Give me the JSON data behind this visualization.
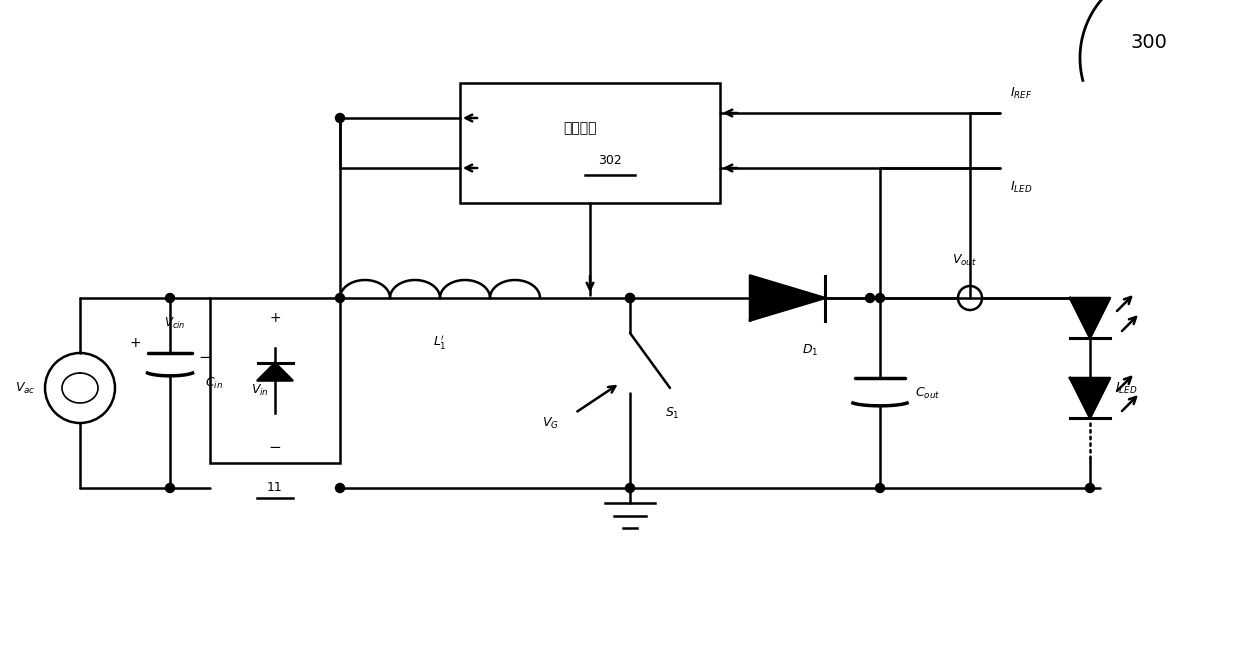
{
  "bg_color": "#ffffff",
  "line_color": "#000000",
  "fig_width": 12.4,
  "fig_height": 6.68,
  "dpi": 100,
  "label_300": "300",
  "label_vac": "$V_{ac}$",
  "label_vcin": "$V_{cin}$",
  "label_cin": "$C_{in}$",
  "label_vin": "$V_{in}$",
  "label_l1": "$L_1'$",
  "label_vg": "$V_G$",
  "label_s1": "$S_1$",
  "label_d1": "$D_1$",
  "label_cout": "$C_{out}$",
  "label_vout": "$V_{out}$",
  "label_iled": "$I_{LED}$",
  "label_iref": "$I_{REF}$",
  "label_ctrl": "控制电路",
  "label_302": "302",
  "label_11": "11"
}
